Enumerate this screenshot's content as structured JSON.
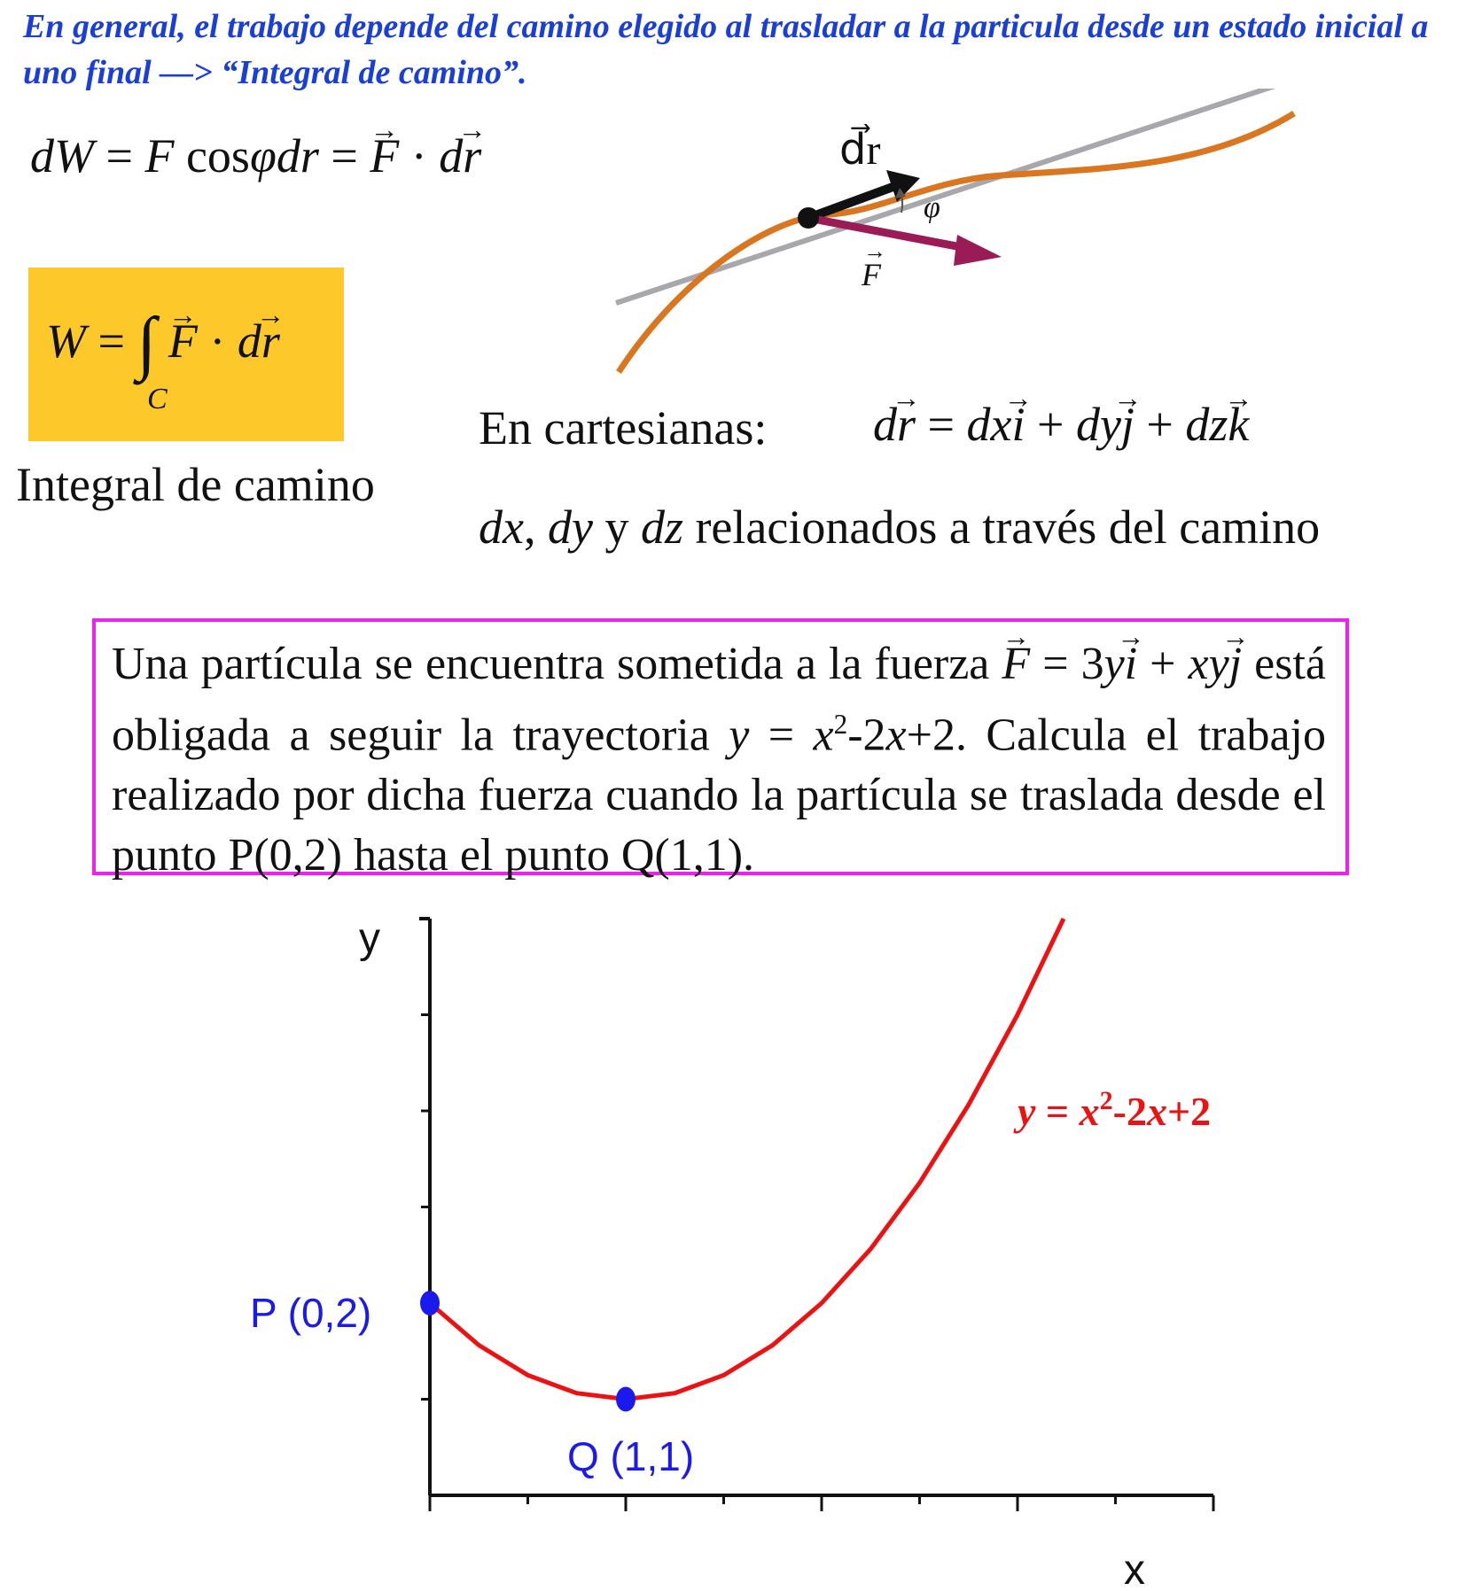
{
  "intro_text": "En general, el trabajo depende del camino elegido al trasladar a la particula desde un estado inicial a uno final —> “Integral de camino”.",
  "dw_formula": {
    "dW": "dW",
    "equals1": "=",
    "F": "F",
    "cos": "cos",
    "phi": "φ",
    "dr": "dr",
    "equals2": "=",
    "Fvec": "F",
    "dot": "·",
    "d": "d",
    "rvec": "r"
  },
  "work_formula": {
    "W": "W",
    "equals": "=",
    "integral": "∫",
    "Fvec": "F",
    "dot": "·",
    "d": "d",
    "rvec": "r",
    "subscript": "C"
  },
  "integral_label": "Integral de camino",
  "vector_diagram": {
    "dr_label": "d⃗r",
    "phi_label": "φ",
    "F_label": "F",
    "colors": {
      "tangent": "#a8a8ac",
      "path": "#d9761f",
      "dr_arrow": "#111111",
      "force_arrow": "#9a1b55"
    }
  },
  "cartesian": {
    "label": "En cartesianas:",
    "d": "d",
    "r": "r",
    "equals": "=",
    "dx": "dx",
    "i": "i",
    "plus1": "+",
    "dy": "dy",
    "j": "j",
    "plus2": "+",
    "dz": "dz",
    "k": "k"
  },
  "relation_line": {
    "dx": "dx",
    "sep1": ", ",
    "dy": "dy",
    "y": " y ",
    "dz": "dz",
    "rest": " relacionados a través del camino"
  },
  "problem": {
    "line1_prefix": "Una partícula se encuentra sometida a la fuerza",
    "F": "F",
    "eq": "=",
    "coef": "3",
    "y": "y",
    "i": "i",
    "plus": "+",
    "xy": "xy",
    "j": "j",
    "line2_a": "está obligada a seguir la trayectoria",
    "y_var": "y",
    "eq2": "=",
    "x_var": "x",
    "sup": "2",
    "rest2": "-2",
    "x_var2": "x",
    "rest3": "+2. Calcula el trabajo realizado por dicha fuerza cuando la partícula se traslada desde el punto P(0,2) hasta el punto Q(1,1)."
  },
  "chart_data": {
    "type": "line",
    "xlabel": "x",
    "ylabel": "y",
    "xlim": [
      0,
      4
    ],
    "ylim": [
      0,
      6
    ],
    "x_ticks": [
      0,
      0.5,
      1,
      1.5,
      2,
      2.5,
      3,
      3.5,
      4
    ],
    "y_ticks": [
      0,
      1,
      2,
      3,
      4,
      5,
      6
    ],
    "series": [
      {
        "name": "y = x²-2x+2",
        "function": "x^2-2x+2",
        "x": [
          0,
          0.25,
          0.5,
          0.75,
          1,
          1.25,
          1.5,
          1.75,
          2,
          2.25,
          2.5,
          2.75,
          3,
          3.25
        ],
        "y": [
          2,
          1.5625,
          1.25,
          1.0625,
          1,
          1.0625,
          1.25,
          1.5625,
          2,
          2.5625,
          3.25,
          4.0625,
          5,
          6.0625
        ]
      }
    ],
    "points": [
      {
        "label": "P (0,2)",
        "x": 0,
        "y": 2
      },
      {
        "label": "Q (1,1)",
        "x": 1,
        "y": 1
      }
    ],
    "curve_label": {
      "y": "y",
      "eq": " = ",
      "x": "x",
      "sup": "2",
      "rest1": "-2",
      "x2": "x",
      "rest2": "+2"
    },
    "colors": {
      "curve": "#ee1111",
      "points": "#1a1aee",
      "axis": "#111111"
    }
  }
}
